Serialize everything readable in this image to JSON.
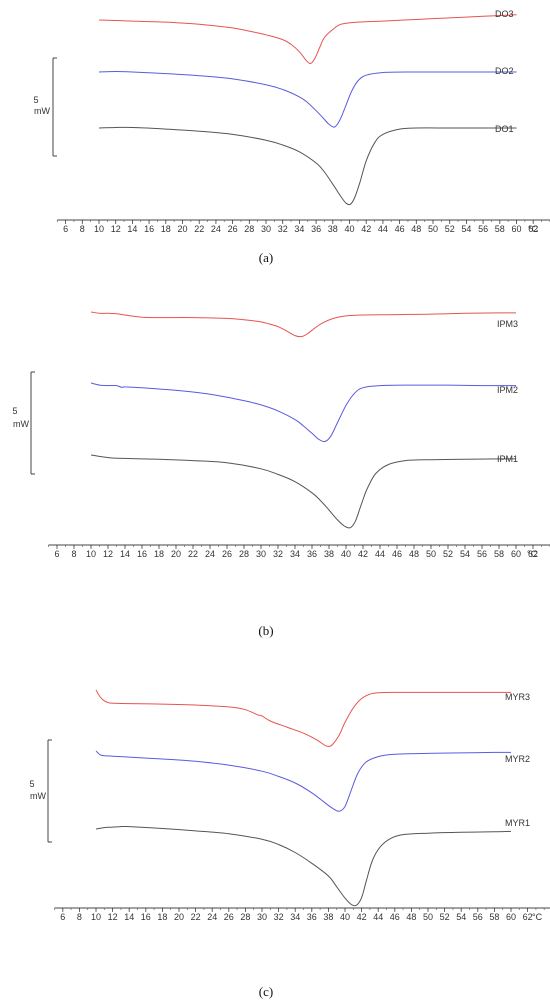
{
  "panels": [
    {
      "caption": "(a)",
      "scale_label": [
        "5",
        "mW"
      ],
      "unit": "°C",
      "chart_data": {
        "type": "line",
        "xlabel": "°C",
        "xlim": [
          5,
          65
        ],
        "xticks": [
          6,
          8,
          10,
          12,
          14,
          16,
          18,
          20,
          22,
          24,
          26,
          28,
          30,
          32,
          34,
          36,
          38,
          40,
          42,
          44,
          46,
          48,
          50,
          52,
          54,
          56,
          58,
          60,
          62
        ],
        "series": [
          {
            "name": "DO3",
            "color": "#e8534f",
            "offset": 0,
            "x": [
              10,
              14,
              18,
              22,
              26,
              28,
              30,
              32,
              33,
              34,
              34.8,
              35.3,
              35.8,
              36.4,
              37,
              38,
              39,
              41,
              44,
              48,
              52,
              56,
              60
            ],
            "y": [
              0,
              -0.2,
              -0.4,
              -0.8,
              -1.5,
              -2.1,
              -2.8,
              -3.7,
              -4.6,
              -6.0,
              -7.6,
              -8.2,
              -7.4,
              -5.3,
              -3.3,
              -1.8,
              -0.8,
              -0.4,
              -0.2,
              0.1,
              0.4,
              0.7,
              1.0
            ]
          },
          {
            "name": "DO2",
            "color": "#5a5ae0",
            "offset": 0,
            "x": [
              10,
              12,
              14,
              18,
              22,
              26,
              30,
              32,
              34,
              35,
              36,
              36.8,
              37.5,
              38.2,
              38.8,
              39.5,
              40.2,
              41,
              42,
              44,
              48,
              52,
              56,
              60
            ],
            "y": [
              0,
              0.1,
              0,
              -0.3,
              -0.7,
              -1.3,
              -2.4,
              -3.3,
              -4.7,
              -5.8,
              -7.3,
              -8.6,
              -9.8,
              -10.4,
              -9.2,
              -6.6,
              -3.8,
              -1.7,
              -0.6,
              -0.1,
              0,
              0,
              0,
              0
            ]
          },
          {
            "name": "DO1",
            "color": "#555555",
            "offset": 0,
            "x": [
              10,
              12,
              14,
              18,
              22,
              26,
              30,
              32,
              34,
              36,
              37,
              38,
              39,
              39.6,
              40.1,
              40.6,
              41.2,
              42,
              43,
              44,
              46,
              48,
              52,
              56,
              60
            ],
            "y": [
              0,
              0.1,
              0.1,
              -0.2,
              -0.6,
              -1.2,
              -2.3,
              -3.2,
              -4.5,
              -6.6,
              -8.3,
              -10.6,
              -13.0,
              -14.2,
              -14.4,
              -13.2,
              -10.5,
              -6.2,
              -2.8,
              -1.2,
              -0.2,
              0,
              0,
              0,
              0
            ]
          }
        ]
      }
    },
    {
      "caption": "(b)",
      "scale_label": [
        "5",
        "mW"
      ],
      "unit": "°C",
      "chart_data": {
        "type": "line",
        "xlabel": "°C",
        "xlim": [
          5,
          65
        ],
        "xticks": [
          6,
          8,
          10,
          12,
          14,
          16,
          18,
          20,
          22,
          24,
          26,
          28,
          30,
          32,
          34,
          36,
          38,
          40,
          42,
          44,
          46,
          48,
          50,
          52,
          54,
          56,
          58,
          60,
          62
        ],
        "series": [
          {
            "name": "IPM3",
            "color": "#e8534f",
            "offset": 0,
            "x": [
              10,
              11,
              12,
              13,
              14,
              15,
              16,
              18,
              22,
              26,
              28,
              30,
              31,
              32,
              33,
              34,
              34.8,
              35.5,
              36.3,
              37.2,
              38.5,
              40,
              42,
              46,
              50,
              54,
              58,
              60
            ],
            "y": [
              0,
              -0.3,
              -0.3,
              -0.4,
              -0.7,
              -1.0,
              -1.2,
              -1.3,
              -1.3,
              -1.5,
              -1.8,
              -2.3,
              -2.8,
              -3.4,
              -4.4,
              -5.5,
              -5.7,
              -5.0,
              -3.8,
              -2.6,
              -1.5,
              -0.9,
              -0.7,
              -0.6,
              -0.5,
              -0.3,
              -0.2,
              -0.2
            ]
          },
          {
            "name": "IPM2",
            "color": "#5a5ae0",
            "offset": 0,
            "x": [
              10,
              11,
              12,
              13,
              13.6,
              14,
              16,
              20,
              24,
              28,
              30,
              32,
              34,
              35,
              36,
              36.8,
              37.5,
              38.2,
              39,
              40,
              41,
              42,
              44,
              48,
              52,
              56,
              60
            ],
            "y": [
              0,
              -0.5,
              -0.6,
              -0.6,
              -1.0,
              -0.9,
              -1.1,
              -1.7,
              -2.6,
              -4.1,
              -5.1,
              -6.5,
              -8.5,
              -10.0,
              -11.7,
              -13.1,
              -13.6,
              -12.4,
              -9.2,
              -5.2,
              -2.4,
              -1.1,
              -0.6,
              -0.5,
              -0.5,
              -0.6,
              -0.6
            ]
          },
          {
            "name": "IPM1",
            "color": "#555555",
            "offset": 0,
            "x": [
              10,
              12,
              14,
              18,
              22,
              26,
              30,
              32,
              34,
              36,
              37,
              38,
              39,
              39.8,
              40.5,
              41.1,
              41.8,
              42.5,
              43.5,
              45,
              47,
              50,
              54,
              58,
              60
            ],
            "y": [
              0,
              -0.6,
              -0.8,
              -1.0,
              -1.3,
              -1.8,
              -3.2,
              -4.5,
              -6.2,
              -8.8,
              -10.6,
              -12.8,
              -15.1,
              -16.5,
              -16.9,
              -15.4,
              -11.5,
              -7.8,
              -4.3,
              -2.2,
              -1.3,
              -1.1,
              -1.0,
              -0.9,
              -0.9
            ]
          }
        ]
      }
    },
    {
      "caption": "(c)",
      "scale_label": [
        "5",
        "mW"
      ],
      "unit": "°C",
      "chart_data": {
        "type": "line",
        "xlabel": "°C",
        "xlim": [
          5,
          65
        ],
        "xticks": [
          6,
          8,
          10,
          12,
          14,
          16,
          18,
          20,
          22,
          24,
          26,
          28,
          30,
          32,
          34,
          36,
          38,
          40,
          42,
          44,
          46,
          48,
          50,
          52,
          54,
          56,
          58,
          60,
          62
        ],
        "series": [
          {
            "name": "MYR3",
            "color": "#e8534f",
            "offset": 0,
            "x": [
              10,
              10.5,
              11,
              11.5,
              12,
              14,
              18,
              22,
              26,
              28,
              29.5,
              30,
              31,
              33,
              35,
              36.5,
              37.5,
              38,
              38.5,
              39.3,
              40,
              41,
              42,
              43,
              44,
              46,
              50,
              54,
              58,
              60
            ],
            "y": [
              0,
              -1.5,
              -2.3,
              -2.7,
              -2.8,
              -2.9,
              -3.0,
              -3.2,
              -3.6,
              -4.2,
              -5.3,
              -5.5,
              -6.6,
              -7.9,
              -9.2,
              -10.5,
              -11.7,
              -12.0,
              -11.6,
              -9.6,
              -6.9,
              -3.8,
              -1.8,
              -0.9,
              -0.6,
              -0.5,
              -0.5,
              -0.5,
              -0.5,
              -0.5
            ]
          },
          {
            "name": "MYR2",
            "color": "#5a5ae0",
            "offset": 0,
            "x": [
              10,
              10.5,
              11,
              12,
              14,
              18,
              22,
              26,
              30,
              32,
              34,
              36,
              37.5,
              38.5,
              39.3,
              40,
              40.7,
              41.5,
              42.5,
              44,
              46,
              50,
              54,
              58,
              60
            ],
            "y": [
              0,
              -0.8,
              -1.0,
              -1.1,
              -1.3,
              -1.7,
              -2.2,
              -3.0,
              -4.3,
              -5.4,
              -6.8,
              -8.9,
              -10.9,
              -12.2,
              -12.8,
              -11.8,
              -8.6,
              -4.9,
              -2.4,
              -1.2,
              -0.7,
              -0.5,
              -0.4,
              -0.3,
              -0.3
            ]
          },
          {
            "name": "MYR1",
            "color": "#555555",
            "offset": 0,
            "x": [
              10,
              11,
              12,
              13,
              14,
              18,
              22,
              26,
              30,
              32,
              34,
              36,
              38,
              39,
              40,
              40.8,
              41.4,
              42,
              42.6,
              43.3,
              44.2,
              45.5,
              47,
              50,
              54,
              58,
              60
            ],
            "y": [
              0,
              0.3,
              0.4,
              0.5,
              0.5,
              0.1,
              -0.4,
              -1.0,
              -2.2,
              -3.3,
              -5.0,
              -7.3,
              -10.0,
              -12.3,
              -14.7,
              -16.1,
              -16.2,
              -14.6,
              -10.8,
              -6.7,
              -3.9,
              -2.0,
              -1.2,
              -0.9,
              -0.7,
              -0.6,
              -0.5
            ]
          }
        ]
      }
    }
  ]
}
